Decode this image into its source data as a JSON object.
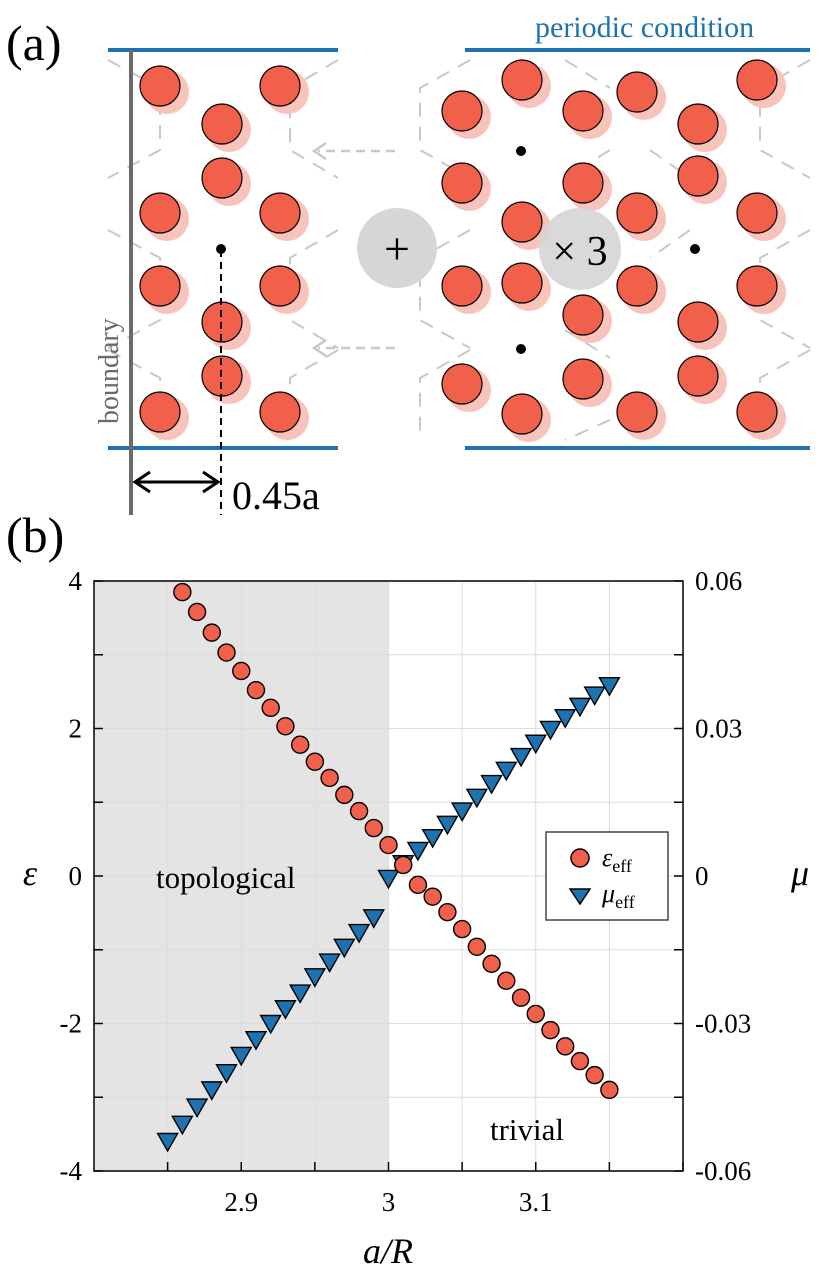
{
  "panel_a": {
    "label": "(a)",
    "periodic_label": "periodic condition",
    "boundary_label": "boundary",
    "offset_label": "0.45a",
    "plus_symbol": "+",
    "times_label": "× 3",
    "colors": {
      "particle": "#f0604a",
      "particle_shadow": "#f8c3bb",
      "periodic_line": "#1f72b0",
      "boundary_line": "#6a6a6a",
      "circle_op": "#d6d6d6",
      "hex_dash": "#c8c8c8",
      "arrow": "#c8c8c8"
    }
  },
  "panel_b": {
    "label": "(b)",
    "region_topological": "topological",
    "region_trivial": "trivial",
    "colors": {
      "shade": "#e4e4e4",
      "eps_marker": "#f0604a",
      "mu_marker": "#1f72b0",
      "grid": "#dcdcdc"
    }
  },
  "chart_data": {
    "type": "scatter",
    "xlabel": "a/R",
    "ylabel_left": "ε",
    "ylabel_right": "μ",
    "xlim": [
      2.8,
      3.2
    ],
    "ylim_left": [
      -4,
      4
    ],
    "ylim_right": [
      -0.06,
      0.06
    ],
    "x_ticks": [
      2.9,
      3.0,
      3.1
    ],
    "x_tick_labels": [
      "2.9",
      "3",
      "3.1"
    ],
    "y_left_ticks": [
      4,
      2,
      0,
      -2,
      -4
    ],
    "y_left_tick_labels": [
      "4",
      "2",
      "0",
      "-2",
      "-4"
    ],
    "y_right_ticks": [
      0.06,
      0.03,
      0,
      -0.03,
      -0.06
    ],
    "y_right_tick_labels": [
      "0.06",
      "0.03",
      "0",
      "-0.03",
      "-0.06"
    ],
    "shaded_region": {
      "x_from": 2.8,
      "x_to": 3.0,
      "label": "topological"
    },
    "legend": [
      "ε_eff",
      "μ_eff"
    ],
    "legend_position": "right-middle",
    "grid": true,
    "series": [
      {
        "name": "ε_eff",
        "axis": "left",
        "marker": "circle",
        "x": [
          2.86,
          2.87,
          2.88,
          2.89,
          2.9,
          2.91,
          2.92,
          2.93,
          2.94,
          2.95,
          2.96,
          2.97,
          2.98,
          2.99,
          3.0,
          3.01,
          3.02,
          3.03,
          3.04,
          3.05,
          3.06,
          3.07,
          3.08,
          3.09,
          3.1,
          3.11,
          3.12,
          3.13,
          3.14,
          3.15
        ],
        "values": [
          3.85,
          3.58,
          3.3,
          3.03,
          2.78,
          2.52,
          2.28,
          2.03,
          1.78,
          1.55,
          1.33,
          1.1,
          0.88,
          0.65,
          0.42,
          0.15,
          -0.12,
          -0.28,
          -0.49,
          -0.72,
          -0.96,
          -1.19,
          -1.42,
          -1.65,
          -1.87,
          -2.09,
          -2.31,
          -2.51,
          -2.7,
          -2.9
        ]
      },
      {
        "name": "μ_eff",
        "axis": "right",
        "marker": "triangle-down",
        "x": [
          2.85,
          2.86,
          2.87,
          2.88,
          2.89,
          2.9,
          2.91,
          2.92,
          2.93,
          2.94,
          2.95,
          2.96,
          2.97,
          2.98,
          2.99,
          3.0,
          3.01,
          3.02,
          3.03,
          3.04,
          3.05,
          3.06,
          3.07,
          3.08,
          3.09,
          3.1,
          3.11,
          3.12,
          3.13,
          3.14,
          3.15
        ],
        "values": [
          -0.054,
          -0.0505,
          -0.047,
          -0.0435,
          -0.04,
          -0.0365,
          -0.0333,
          -0.03,
          -0.027,
          -0.0238,
          -0.0205,
          -0.0175,
          -0.0145,
          -0.0115,
          -0.0085,
          -0.0005,
          0.0025,
          0.0052,
          0.0078,
          0.0105,
          0.0132,
          0.016,
          0.0188,
          0.0215,
          0.0243,
          0.027,
          0.0298,
          0.0322,
          0.0345,
          0.0368,
          0.0387
        ]
      }
    ]
  }
}
